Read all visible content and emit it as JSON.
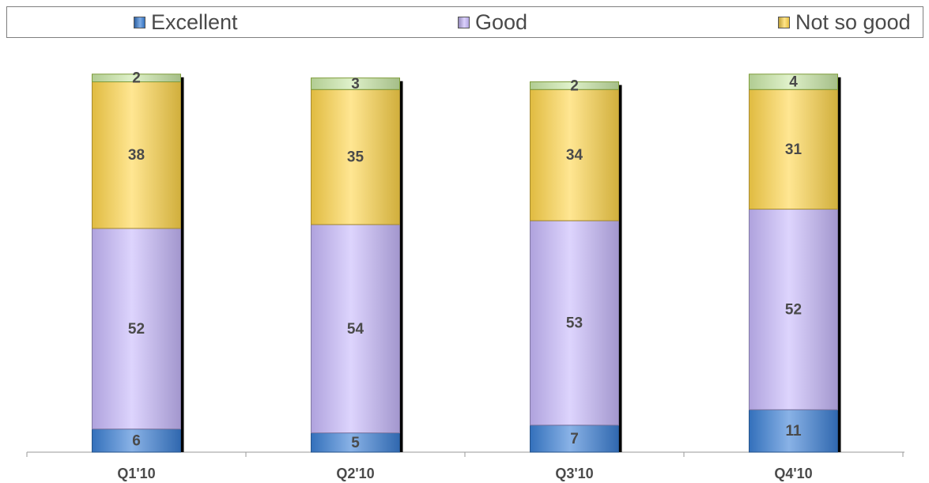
{
  "chart_data": {
    "type": "bar",
    "stacked": true,
    "categories": [
      "Q1'10",
      "Q2'10",
      "Q3'10",
      "Q4'10"
    ],
    "series": [
      {
        "name": "Excellent",
        "values": [
          6,
          5,
          7,
          11
        ],
        "color": "#3a7fd5"
      },
      {
        "name": "Good",
        "values": [
          52,
          54,
          53,
          52
        ],
        "color": "#c7b8fb"
      },
      {
        "name": "Not so good",
        "values": [
          38,
          35,
          34,
          31
        ],
        "color": "#ffd54a"
      },
      {
        "name": "",
        "values": [
          2,
          3,
          2,
          4
        ],
        "color": "#c9e8a6"
      }
    ],
    "legend_position": "top",
    "grid": false,
    "data_labels": true
  },
  "legend": {
    "items": [
      {
        "label": "Excellent",
        "color": "#3a7fd5"
      },
      {
        "label": "Good",
        "color": "#c7b8fb"
      },
      {
        "label": "Not so good",
        "color": "#ffd54a"
      }
    ]
  }
}
